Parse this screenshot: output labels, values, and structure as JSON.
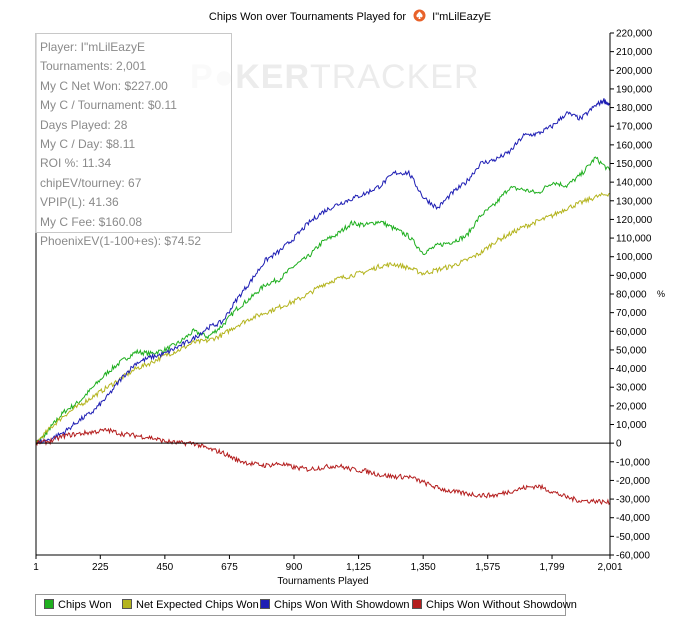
{
  "chart_data": {
    "type": "line",
    "title": "Chips Won over Tournaments Played for",
    "player_name": "I\"mLilEazyE",
    "xlabel": "Tournaments Played",
    "ylabel": "%",
    "xlim": [
      1,
      2001
    ],
    "ylim": [
      -60000,
      220000
    ],
    "x_ticks": [
      1,
      225,
      450,
      675,
      900,
      1125,
      1350,
      1575,
      1799,
      2001
    ],
    "x_tick_labels": [
      "1",
      "225",
      "450",
      "675",
      "900",
      "1,125",
      "1,350",
      "1,575",
      "1,799",
      "2,001"
    ],
    "y_ticks": [
      -60000,
      -50000,
      -40000,
      -30000,
      -20000,
      -10000,
      0,
      10000,
      20000,
      30000,
      40000,
      50000,
      60000,
      70000,
      80000,
      90000,
      100000,
      110000,
      120000,
      130000,
      140000,
      150000,
      160000,
      170000,
      180000,
      190000,
      200000,
      210000,
      220000
    ],
    "y_tick_labels": [
      "-60,000",
      "-50,000",
      "-40,000",
      "-30,000",
      "-20,000",
      "-10,000",
      "0",
      "10,000",
      "20,000",
      "30,000",
      "40,000",
      "50,000",
      "60,000",
      "70,000",
      "80,000",
      "90,000",
      "100,000",
      "110,000",
      "120,000",
      "130,000",
      "140,000",
      "150,000",
      "160,000",
      "170,000",
      "180,000",
      "190,000",
      "200,000",
      "210,000",
      "220,000"
    ],
    "grid": false,
    "legend_position": "bottom",
    "series": [
      {
        "name": "Chips Won",
        "color": "#1faf1f",
        "x": [
          1,
          30,
          60,
          100,
          150,
          200,
          250,
          300,
          350,
          400,
          450,
          500,
          550,
          600,
          650,
          700,
          750,
          800,
          850,
          900,
          950,
          1000,
          1050,
          1100,
          1150,
          1200,
          1250,
          1300,
          1350,
          1400,
          1450,
          1500,
          1550,
          1600,
          1650,
          1700,
          1750,
          1800,
          1850,
          1900,
          1950,
          2001
        ],
        "y": [
          0,
          4000,
          10000,
          17000,
          22000,
          30000,
          38000,
          44000,
          49000,
          48000,
          50000,
          54000,
          60000,
          57000,
          63000,
          72000,
          78000,
          85000,
          88000,
          95000,
          100000,
          108000,
          112000,
          118000,
          117000,
          119000,
          115000,
          111000,
          102000,
          106000,
          108000,
          111000,
          122000,
          128000,
          137000,
          136000,
          134000,
          140000,
          138000,
          144000,
          153000,
          146000
        ]
      },
      {
        "name": "Net Expected Chips Won",
        "color": "#b4b41e",
        "x": [
          1,
          50,
          100,
          150,
          200,
          250,
          300,
          350,
          400,
          450,
          500,
          550,
          600,
          650,
          700,
          750,
          800,
          850,
          900,
          950,
          1000,
          1050,
          1100,
          1150,
          1200,
          1250,
          1300,
          1350,
          1400,
          1450,
          1500,
          1550,
          1600,
          1650,
          1700,
          1750,
          1800,
          1850,
          1900,
          1950,
          2001
        ],
        "y": [
          0,
          8000,
          15000,
          20000,
          25000,
          30000,
          35000,
          40000,
          43000,
          47000,
          50000,
          54000,
          55000,
          58000,
          63000,
          67000,
          70000,
          73000,
          76000,
          80000,
          85000,
          88000,
          90000,
          92000,
          95000,
          96000,
          94000,
          91000,
          93000,
          95000,
          98000,
          102000,
          108000,
          112000,
          116000,
          119000,
          122000,
          126000,
          129000,
          132000,
          134000
        ]
      },
      {
        "name": "Chips Won With Showdown",
        "color": "#1e1eb4",
        "x": [
          1,
          50,
          100,
          150,
          200,
          250,
          300,
          350,
          400,
          450,
          500,
          550,
          600,
          650,
          700,
          750,
          800,
          850,
          900,
          950,
          1000,
          1050,
          1100,
          1150,
          1200,
          1250,
          1300,
          1350,
          1400,
          1450,
          1500,
          1550,
          1600,
          1650,
          1700,
          1750,
          1800,
          1850,
          1900,
          1950,
          1980,
          2001
        ],
        "y": [
          0,
          2000,
          6000,
          12000,
          17000,
          25000,
          35000,
          43000,
          46000,
          48000,
          52000,
          56000,
          62000,
          65000,
          77000,
          87000,
          98000,
          103000,
          110000,
          118000,
          124000,
          128000,
          131000,
          134000,
          138000,
          145000,
          145000,
          132000,
          126000,
          134000,
          140000,
          150000,
          152000,
          156000,
          165000,
          166000,
          170000,
          177000,
          174000,
          181000,
          184000,
          181000
        ]
      },
      {
        "name": "Chips Won Without Showdown",
        "color": "#b41e1e",
        "x": [
          1,
          50,
          100,
          150,
          200,
          250,
          300,
          350,
          400,
          450,
          500,
          550,
          600,
          650,
          700,
          750,
          800,
          850,
          900,
          950,
          1000,
          1050,
          1100,
          1150,
          1200,
          1250,
          1300,
          1350,
          1400,
          1450,
          1500,
          1550,
          1600,
          1650,
          1700,
          1750,
          1800,
          1850,
          1900,
          1950,
          2001
        ],
        "y": [
          0,
          1000,
          4000,
          5000,
          6000,
          7000,
          5000,
          4000,
          3000,
          1000,
          0,
          0,
          -3000,
          -5000,
          -9000,
          -11000,
          -12000,
          -11000,
          -13000,
          -14000,
          -13000,
          -12000,
          -14000,
          -15000,
          -17000,
          -18000,
          -18000,
          -21000,
          -24000,
          -26000,
          -27000,
          -28000,
          -28000,
          -26000,
          -24000,
          -23000,
          -26000,
          -29000,
          -31000,
          -31000,
          -32000
        ]
      }
    ]
  },
  "stats_box": {
    "rows": [
      "Player: I\"mLilEazyE",
      "Tournaments: 2,001",
      "My C Net Won: $227.00",
      "My C / Tournament: $0.11",
      "Days Played: 28",
      "My C / Day: $8.11",
      "ROI %: 11.34",
      "chipEV/tourney: 67",
      "VPIP(L): 41.36",
      "My C Fee: $160.08",
      "PhoenixEV(1-100+es): $74.52"
    ]
  },
  "watermark": {
    "part1": "P",
    "part2": "KER",
    "part3": "TRACKER"
  },
  "colors": {
    "axis": "#000000",
    "zero_line": "#000000",
    "stats_text": "#8a8a8a",
    "watermark": "#ececec"
  }
}
